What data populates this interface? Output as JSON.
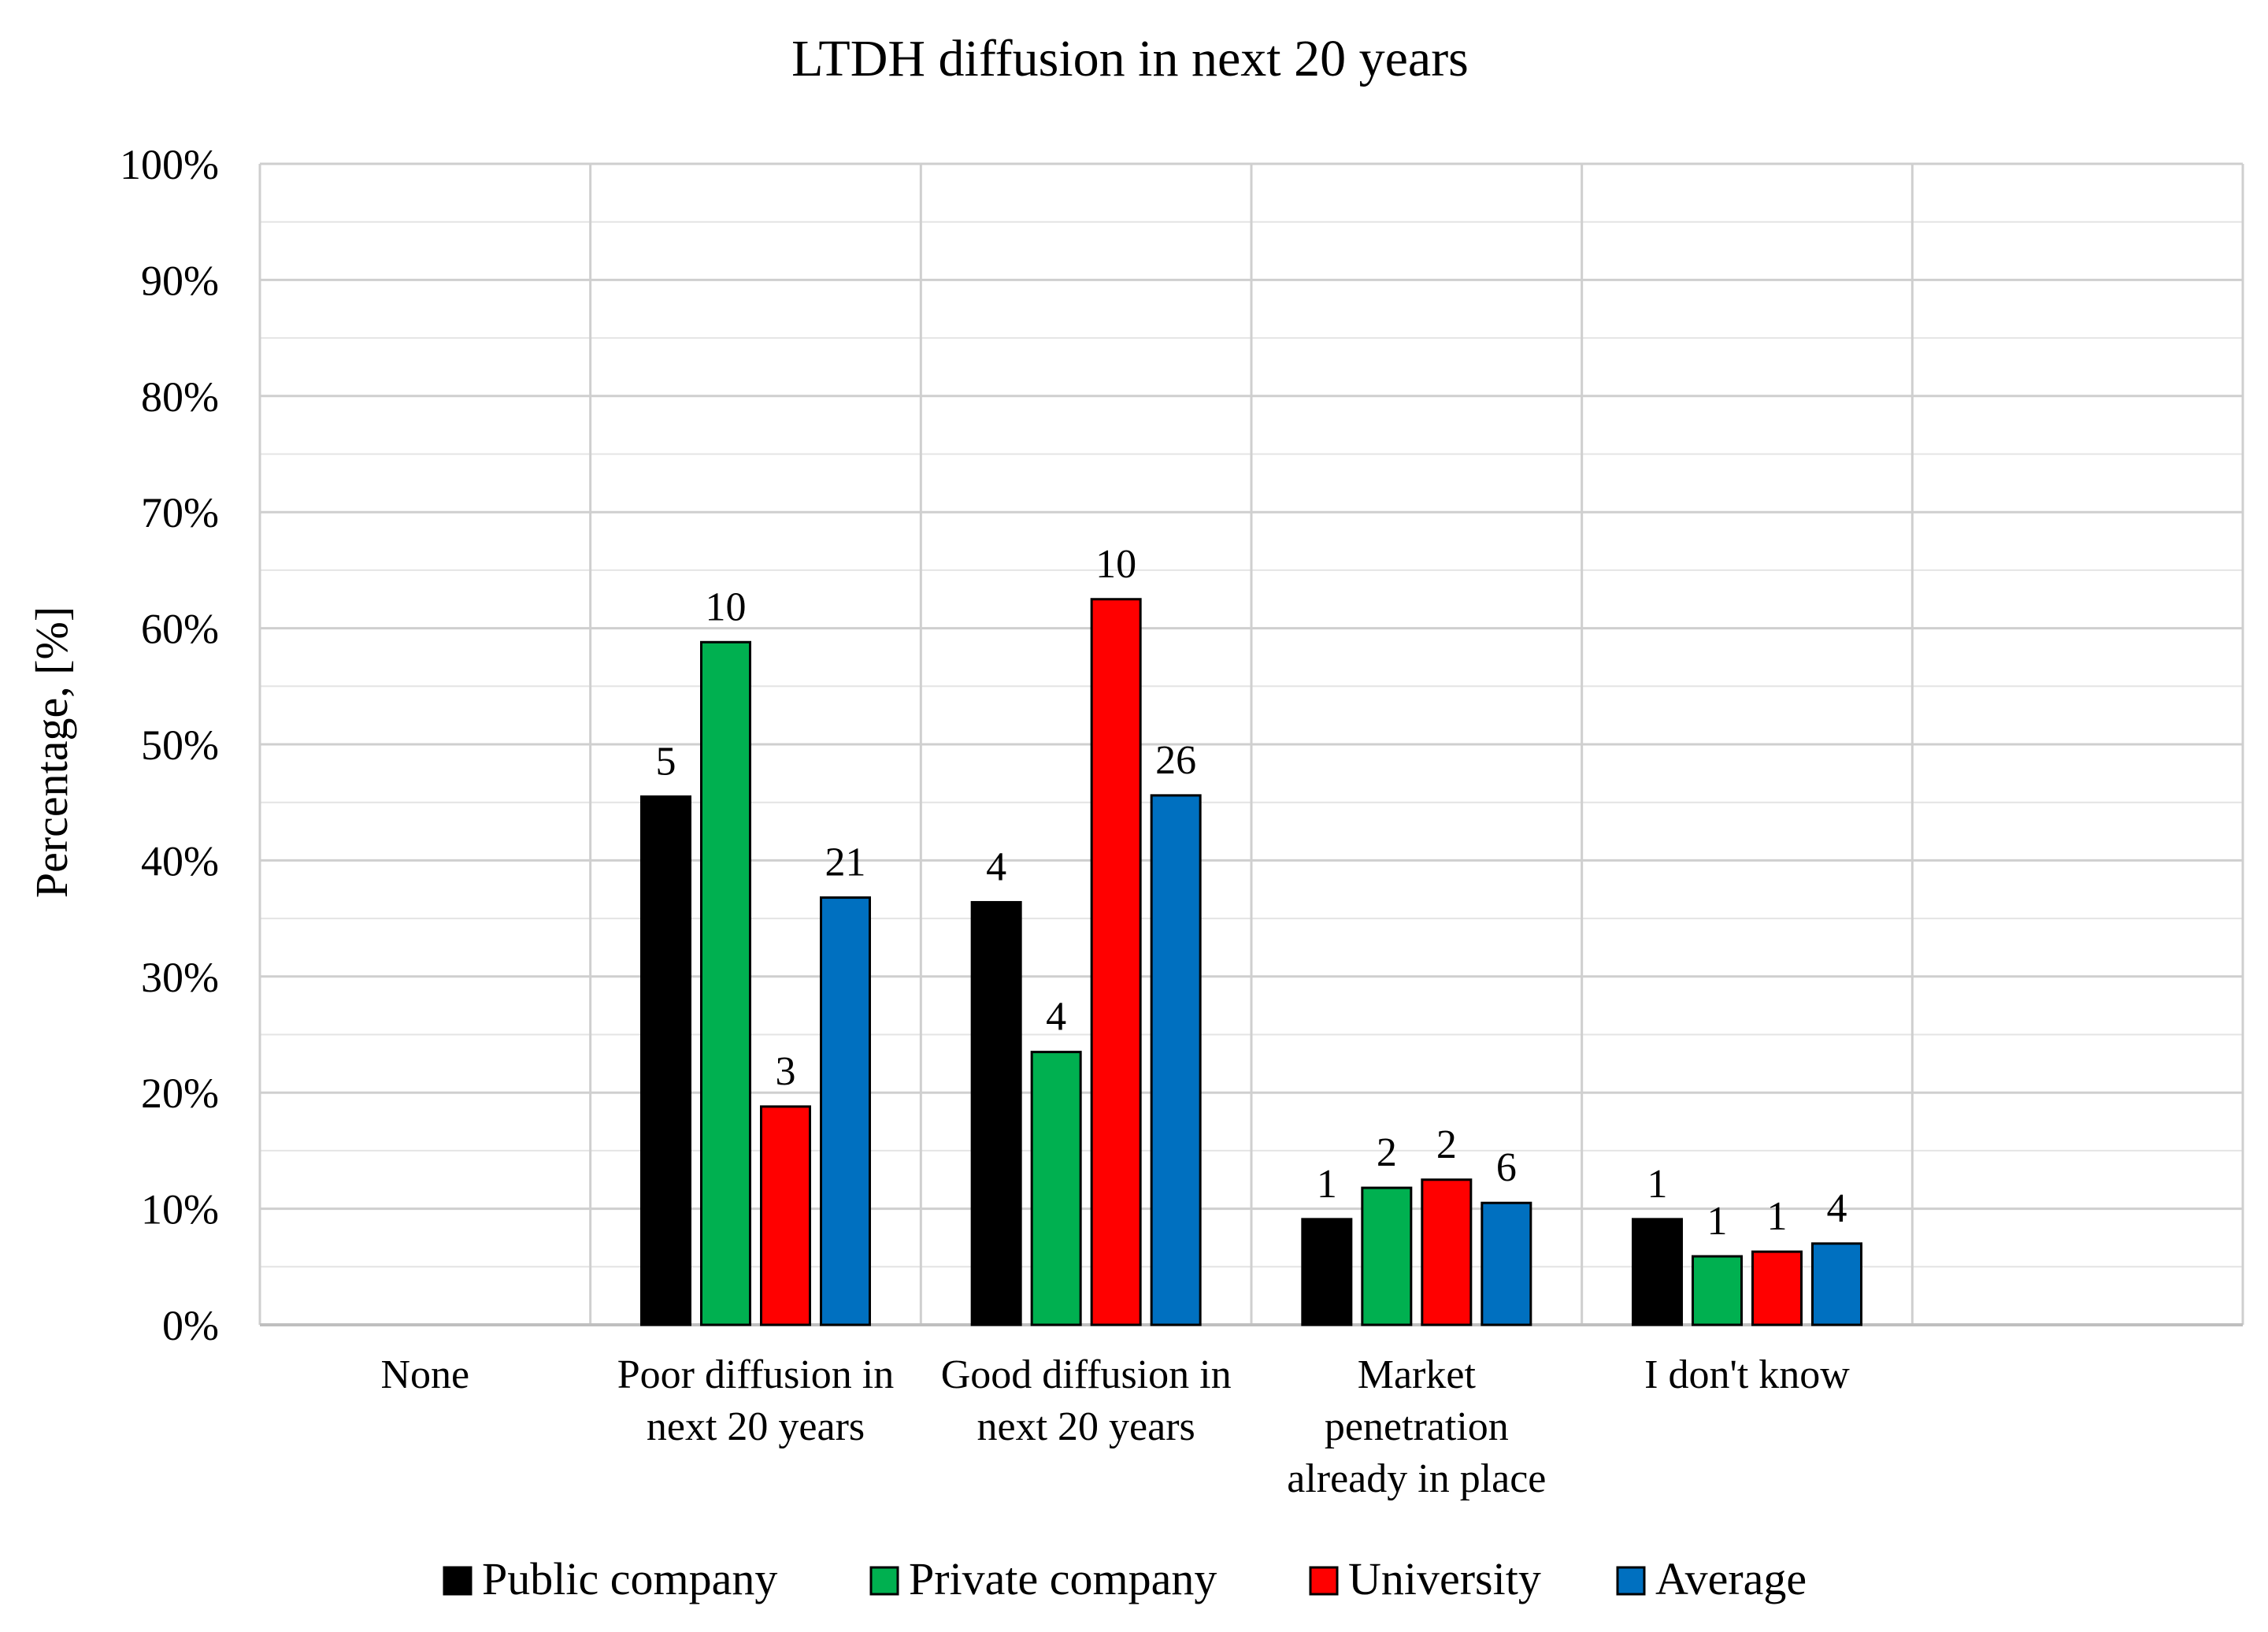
{
  "chart_data": {
    "type": "bar",
    "title": "LTDH  diffusion in next 20 years",
    "ylabel": "Percentage, [%]",
    "xlabel": "",
    "ylim": [
      0,
      100
    ],
    "yticks": [
      "0%",
      "10%",
      "20%",
      "30%",
      "40%",
      "50%",
      "60%",
      "70%",
      "80%",
      "90%",
      "100%"
    ],
    "grid": true,
    "legend_position": "bottom",
    "categories": [
      [
        "None"
      ],
      [
        "Poor diffusion in",
        "next 20 years"
      ],
      [
        "Good diffusion in",
        "next 20 years"
      ],
      [
        "Market",
        "penetration",
        "already in place"
      ],
      [
        "I don't know"
      ],
      [
        ""
      ]
    ],
    "series": [
      {
        "name": "Public company",
        "color": "#000000",
        "values": [
          null,
          45.5,
          36.4,
          9.1,
          9.1,
          null
        ],
        "labels": [
          null,
          "5",
          "4",
          "1",
          "1",
          null
        ]
      },
      {
        "name": "Private company",
        "color": "#00b050",
        "values": [
          null,
          58.8,
          23.5,
          11.8,
          5.9,
          null
        ],
        "labels": [
          null,
          "10",
          "4",
          "2",
          "1",
          null
        ]
      },
      {
        "name": "University",
        "color": "#ff0000",
        "values": [
          null,
          18.8,
          62.5,
          12.5,
          6.3,
          null
        ],
        "labels": [
          null,
          "3",
          "10",
          "2",
          "1",
          null
        ]
      },
      {
        "name": "Average",
        "color": "#0070c0",
        "values": [
          null,
          36.8,
          45.6,
          10.5,
          7.0,
          null
        ],
        "labels": [
          null,
          "21",
          "26",
          "6",
          "4",
          null
        ]
      }
    ]
  }
}
